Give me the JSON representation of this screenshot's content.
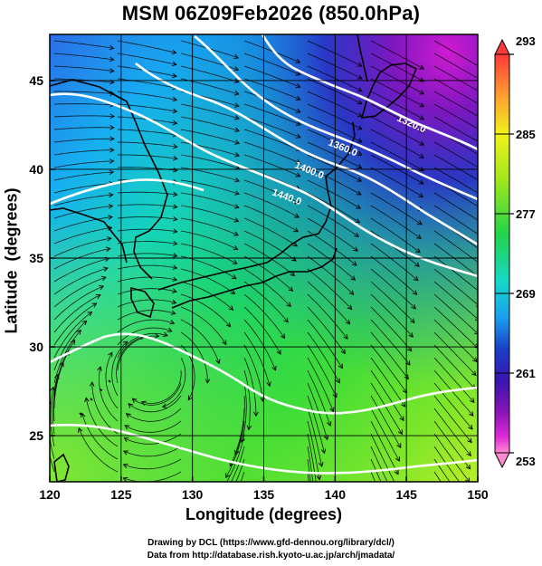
{
  "title": "MSM 06Z09Feb2026 (850.0hPa)",
  "xlabel": "Longitude (degrees)",
  "ylabel": "Latitude  (degrees)",
  "credits": {
    "line1": "Drawing by DCL (https://www.gfd-dennou.org/library/dcl/)",
    "line2": "Data from http://database.rish.kyoto-u.ac.jp/arch/jmadata/"
  },
  "map": {
    "lon_range": [
      120,
      150
    ],
    "lat_range": [
      22.4,
      47.6
    ],
    "x_ticks": [
      "120",
      "125",
      "130",
      "135",
      "140",
      "145",
      "150"
    ],
    "y_ticks": [
      "25",
      "30",
      "35",
      "40",
      "45"
    ],
    "contour_labels": [
      "1320.0",
      "1360.0",
      "1400.0",
      "1440.0"
    ],
    "contour_color": "#ffffff",
    "streamline_color": "#000000",
    "coastline_color": "#000000"
  },
  "colorbar": {
    "ticks": [
      "293",
      "285",
      "277",
      "269",
      "261",
      "253"
    ],
    "range": [
      253,
      293
    ],
    "colors": [
      "#ff3a3a",
      "#ff9a30",
      "#f2f21a",
      "#9ee61c",
      "#22d44a",
      "#16d8c8",
      "#1aa0f0",
      "#1a3ec8",
      "#3a14b0",
      "#8c14b8",
      "#e02ad8",
      "#ff8ad0"
    ]
  }
}
